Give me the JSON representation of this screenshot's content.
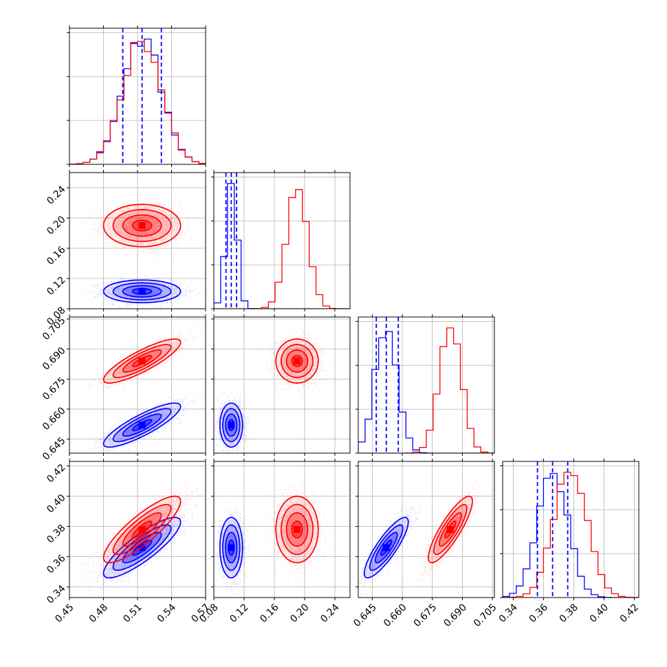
{
  "chart_data": {
    "type": "corner",
    "grid": true,
    "colors": {
      "blue": "#0000ff",
      "red": "#ff0000"
    },
    "parameters": [
      {
        "range": [
          0.45,
          0.57
        ],
        "ticks": [
          0.45,
          0.48,
          0.51,
          0.54,
          0.57
        ],
        "tick_labels": [
          "0.45",
          "0.48",
          "0.51",
          "0.54",
          "0.57"
        ]
      },
      {
        "range": [
          0.08,
          0.26
        ],
        "ticks": [
          0.08,
          0.12,
          0.16,
          0.2,
          0.24
        ],
        "tick_labels": [
          "0.08",
          "0.12",
          "0.16",
          "0.20",
          "0.24"
        ]
      },
      {
        "range": [
          0.638,
          0.706
        ],
        "ticks": [
          0.645,
          0.66,
          0.675,
          0.69,
          0.705
        ],
        "tick_labels": [
          "0.645",
          "0.660",
          "0.675",
          "0.690",
          "0.705"
        ]
      },
      {
        "range": [
          0.333,
          0.423
        ],
        "ticks": [
          0.34,
          0.36,
          0.38,
          0.4,
          0.42
        ],
        "tick_labels": [
          "0.34",
          "0.36",
          "0.38",
          "0.40",
          "0.42"
        ]
      }
    ],
    "series": [
      {
        "color": "#0000ff",
        "mean": [
          0.514,
          0.103,
          0.652,
          0.366
        ],
        "std": [
          0.017,
          0.0075,
          0.0055,
          0.01
        ],
        "quantiles": [
          [
            0.497,
            0.514,
            0.531
          ],
          [
            0.096,
            0.103,
            0.11
          ],
          [
            0.647,
            0.652,
            0.658
          ],
          [
            0.356,
            0.366,
            0.376
          ]
        ],
        "corr": {
          "1-0": 0.0,
          "2-0": 0.85,
          "2-1": 0.0,
          "3-0": 0.85,
          "3-1": 0.0,
          "3-2": 0.85
        }
      },
      {
        "color": "#ff0000",
        "mean": [
          0.514,
          0.19,
          0.684,
          0.378
        ],
        "std": [
          0.017,
          0.014,
          0.0055,
          0.011
        ],
        "corr": {
          "1-0": 0.0,
          "2-0": 0.85,
          "2-1": 0.0,
          "3-0": 0.85,
          "3-1": 0.0,
          "3-2": 0.85
        }
      }
    ]
  }
}
